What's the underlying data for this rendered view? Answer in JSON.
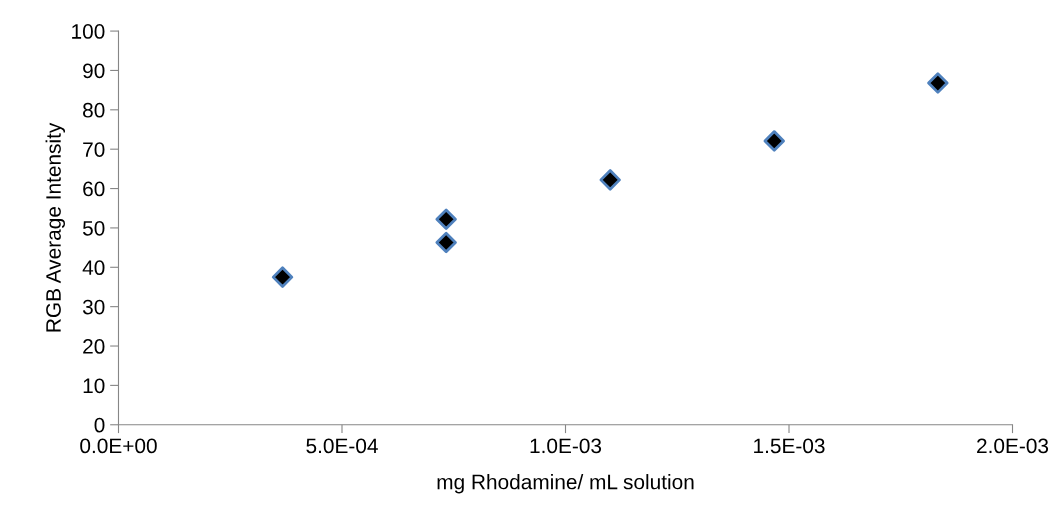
{
  "chart_data": {
    "type": "scatter",
    "xlabel": "mg Rhodamine/ mL solution",
    "ylabel": "RGB Average Intensity",
    "x": [
      0.000367,
      0.000733,
      0.000733,
      0.0011,
      0.001467,
      0.001833
    ],
    "values": [
      37.5,
      52.2,
      46.3,
      62.2,
      72.1,
      86.8
    ],
    "color": "#000000",
    "marker": "diamond",
    "grid": false,
    "xlim": [
      0,
      0.002
    ],
    "xticks": [
      {
        "value": 0,
        "label": "0.0E+00"
      },
      {
        "value": 0.0005,
        "label": "5.0E-04"
      },
      {
        "value": 0.001,
        "label": "1.0E-03"
      },
      {
        "value": 0.0015,
        "label": "1.5E-03"
      },
      {
        "value": 0.002,
        "label": "2.0E-03"
      }
    ],
    "ylim": [
      0,
      100
    ],
    "yticks": [
      0,
      10,
      20,
      30,
      40,
      50,
      60,
      70,
      80,
      90,
      100
    ]
  }
}
